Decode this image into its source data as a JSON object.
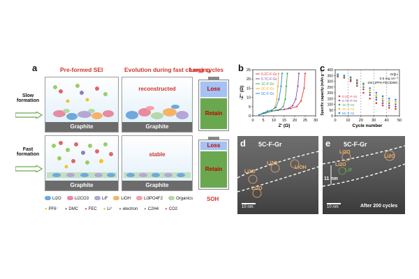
{
  "panel_a": {
    "label": "a",
    "headers": {
      "preformed": "Pre-formed SEI",
      "evolution": "Evolution during fast charging",
      "longcycles": "Long cycles"
    },
    "rows": {
      "slow": {
        "label_line1": "Slow",
        "label_line2": "formation",
        "state": "reconstructed",
        "graphite": "Graphite"
      },
      "fast": {
        "label_line1": "Fast",
        "label_line2": "formation",
        "state": "stable",
        "graphite": "Graphite"
      }
    },
    "battery": {
      "loss": "Loss",
      "retain": "Retain",
      "soh": "SOH"
    },
    "legend_row1": [
      {
        "label": "Li2O",
        "color": "#6fa8dc"
      },
      {
        "label": "Li2CO3",
        "color": "#e88aa0"
      },
      {
        "label": "LiF",
        "color": "#b4a7d6"
      },
      {
        "label": "LiOH",
        "color": "#f6b26b"
      },
      {
        "label": "Li3PO4F2",
        "color": "#f4a0a8"
      },
      {
        "label": "Organics",
        "color": "#b6d7a8"
      }
    ],
    "legend_row2": [
      "PF6⁻",
      "DMC",
      "FEC",
      "Li⁺",
      "electron",
      "C2H4",
      "CO2"
    ]
  },
  "panel_b": {
    "label": "b",
    "ylabel": "-Z'' (Ω)",
    "xlabel": "Z' (Ω)",
    "xticks": [
      "0",
      "5",
      "10",
      "15",
      "20",
      "25",
      "30"
    ],
    "yticks": [
      "0",
      "5",
      "10",
      "15",
      "20",
      "25"
    ],
    "legend": [
      "0.2C-F-Gr",
      "0.7C-F-Gr",
      "1C-F-Gr",
      "3C-F-Gr",
      "5C-F-Gr"
    ]
  },
  "panel_c": {
    "label": "c",
    "ylabel": "Specific capacity (mAh g⁻¹)",
    "xlabel": "Cycle number",
    "xticks": [
      "0",
      "10",
      "20",
      "30",
      "40",
      "50"
    ],
    "yticks": [
      "0",
      "50",
      "100",
      "150",
      "200",
      "250",
      "300",
      "350",
      "400"
    ],
    "info": [
      "Gr||Li",
      "2.5 mg cm⁻²",
      "1M LiPF6 FEC/DMC"
    ],
    "legend": [
      "0.2C-F-Gr",
      "0.7C-F-Gr",
      "1C-F-Gr",
      "3C-F-Gr",
      "5C-F-Gr"
    ]
  },
  "chart_data": [
    {
      "type": "line",
      "title": "",
      "xlabel": "Z' (Ω)",
      "ylabel": "-Z'' (Ω)",
      "xlim": [
        0,
        30
      ],
      "ylim": [
        0,
        25
      ],
      "series": [
        {
          "name": "0.2C-F-Gr",
          "color": "#e53935",
          "x": [
            3,
            6,
            9,
            12,
            15,
            18,
            21,
            23,
            24.5,
            25
          ],
          "y": [
            0.5,
            1.5,
            2.5,
            3,
            3.5,
            4,
            5,
            8,
            15,
            23
          ]
        },
        {
          "name": "0.7C-F-Gr",
          "color": "#8e44ad",
          "x": [
            3,
            6,
            9,
            12,
            15,
            17,
            19,
            20.5,
            21.5,
            22
          ],
          "y": [
            0.5,
            1.5,
            2.5,
            3,
            3.5,
            4,
            5.5,
            9,
            16,
            23
          ]
        },
        {
          "name": "1C-F-Gr",
          "color": "#43a047",
          "x": [
            3,
            6,
            9,
            11,
            13,
            14.5,
            15.5,
            16,
            16.5
          ],
          "y": [
            0.5,
            1.5,
            2.5,
            3,
            3.5,
            5,
            9,
            16,
            23
          ]
        },
        {
          "name": "3C-F-Gr",
          "color": "#f9a825",
          "x": [
            3,
            5,
            7,
            9,
            10.5,
            11.5,
            12,
            12.3
          ],
          "y": [
            0.5,
            1.5,
            2.5,
            3,
            4.5,
            9,
            16,
            23
          ]
        },
        {
          "name": "5C-F-Gr",
          "color": "#1e88e5",
          "x": [
            3,
            5,
            7,
            9,
            11,
            12.5,
            13.5,
            14
          ],
          "y": [
            0.5,
            1.5,
            2.5,
            3,
            4.5,
            9,
            16,
            23
          ]
        }
      ]
    },
    {
      "type": "scatter",
      "title": "",
      "xlabel": "Cycle number",
      "ylabel": "Specific capacity (mAh g⁻¹)",
      "xlim": [
        0,
        50
      ],
      "ylim": [
        0,
        400
      ],
      "x": [
        2,
        7,
        12,
        17,
        22,
        27,
        32,
        37,
        42,
        47
      ],
      "series": [
        {
          "name": "0.2C-F-Gr",
          "color": "#e53935",
          "values": [
            340,
            330,
            300,
            260,
            200,
            150,
            110,
            90,
            70,
            60
          ]
        },
        {
          "name": "0.7C-F-Gr",
          "color": "#8e44ad",
          "values": [
            345,
            335,
            310,
            280,
            230,
            180,
            140,
            110,
            90,
            80
          ]
        },
        {
          "name": "1C-F-Gr",
          "color": "#43a047",
          "values": [
            350,
            340,
            320,
            290,
            250,
            200,
            160,
            130,
            110,
            100
          ]
        },
        {
          "name": "3C-F-Gr",
          "color": "#f9a825",
          "values": [
            355,
            345,
            325,
            300,
            270,
            220,
            180,
            150,
            130,
            120
          ]
        },
        {
          "name": "5C-F-Gr",
          "color": "#1e88e5",
          "values": [
            360,
            350,
            335,
            310,
            280,
            240,
            200,
            170,
            150,
            140
          ]
        }
      ]
    }
  ],
  "panel_d": {
    "label": "d",
    "title": "5C-F-Gr",
    "labels": [
      "Li2O",
      "Li2O",
      "LiOH",
      "Li2O"
    ],
    "scale": "10 nm"
  },
  "panel_e": {
    "label": "e",
    "title": "5C-F-Gr",
    "labels": [
      "Li2O",
      "Li2O",
      "LiF",
      "Li2O"
    ],
    "thickness": "11 nm",
    "scale": "10 nm",
    "note": "After 200 cycles"
  }
}
